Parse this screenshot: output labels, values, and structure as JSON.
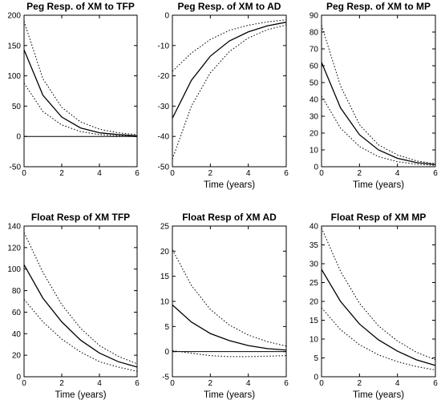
{
  "chart_data": [
    {
      "type": "line",
      "title": "Peg Resp. of XM to  TFP",
      "xlabel": "",
      "xlim": [
        0,
        6
      ],
      "ylim": [
        -50,
        200
      ],
      "xticks": [
        0,
        2,
        4,
        6
      ],
      "yticks": [
        -50,
        0,
        50,
        100,
        150,
        200
      ],
      "zero_line": true,
      "x": [
        0,
        1,
        2,
        3,
        4,
        5,
        6
      ],
      "series": [
        {
          "style": "solid",
          "values": [
            143,
            68,
            32,
            14,
            6,
            3,
            1
          ]
        },
        {
          "style": "dotted",
          "values": [
            190,
            95,
            48,
            24,
            12,
            6,
            3
          ]
        },
        {
          "style": "dotted",
          "values": [
            88,
            41,
            19,
            8,
            3,
            1,
            0
          ]
        }
      ]
    },
    {
      "type": "line",
      "title": "Peg Resp. of XM to  AD",
      "xlabel": "Time (years)",
      "xlim": [
        0,
        6
      ],
      "ylim": [
        -50,
        0
      ],
      "xticks": [
        0,
        2,
        4,
        6
      ],
      "yticks": [
        -50,
        -40,
        -30,
        -20,
        -10,
        0
      ],
      "zero_line": false,
      "x": [
        0,
        1,
        2,
        3,
        4,
        5,
        6
      ],
      "series": [
        {
          "style": "solid",
          "values": [
            -34,
            -21.5,
            -13.5,
            -8.5,
            -5.5,
            -3.5,
            -2.3
          ]
        },
        {
          "style": "dotted",
          "values": [
            -18.5,
            -12.5,
            -8,
            -5,
            -3.3,
            -2.2,
            -1.5
          ]
        },
        {
          "style": "dotted",
          "values": [
            -47.5,
            -30,
            -19,
            -12,
            -7.5,
            -4.8,
            -3.2
          ]
        }
      ]
    },
    {
      "type": "line",
      "title": "Peg Resp. of XM to  MP",
      "xlabel": "Time (years)",
      "xlim": [
        0,
        6
      ],
      "ylim": [
        0,
        90
      ],
      "xticks": [
        0,
        2,
        4,
        6
      ],
      "yticks": [
        0,
        10,
        20,
        30,
        40,
        50,
        60,
        70,
        80,
        90
      ],
      "zero_line": false,
      "x": [
        0,
        1,
        2,
        3,
        4,
        5,
        6
      ],
      "series": [
        {
          "style": "solid",
          "values": [
            62,
            35,
            19,
            10,
            5,
            2.5,
            1.3
          ]
        },
        {
          "style": "dotted",
          "values": [
            84,
            48,
            25,
            13,
            7,
            3.5,
            1.8
          ]
        },
        {
          "style": "dotted",
          "values": [
            42,
            23,
            12,
            6,
            3,
            1.5,
            0.8
          ]
        }
      ]
    },
    {
      "type": "line",
      "title": "Float Resp of XM TFP",
      "xlabel": "Time (years)",
      "xlim": [
        0,
        6
      ],
      "ylim": [
        0,
        140
      ],
      "xticks": [
        0,
        2,
        4,
        6
      ],
      "yticks": [
        0,
        20,
        40,
        60,
        80,
        100,
        120,
        140
      ],
      "zero_line": false,
      "x": [
        0,
        1,
        2,
        3,
        4,
        5,
        6
      ],
      "series": [
        {
          "style": "solid",
          "values": [
            104,
            73,
            51,
            34,
            22,
            14,
            9
          ]
        },
        {
          "style": "dotted",
          "values": [
            134,
            97,
            67,
            45,
            29,
            19,
            12
          ]
        },
        {
          "style": "dotted",
          "values": [
            72,
            51,
            35,
            23,
            14,
            9,
            5
          ]
        }
      ]
    },
    {
      "type": "line",
      "title": "Float Resp of XM AD",
      "xlabel": "Time (years)",
      "xlim": [
        0,
        6
      ],
      "ylim": [
        -5,
        25
      ],
      "xticks": [
        0,
        2,
        4,
        6
      ],
      "yticks": [
        -5,
        0,
        5,
        10,
        15,
        20,
        25
      ],
      "zero_line": true,
      "x": [
        0,
        1,
        2,
        3,
        4,
        5,
        6
      ],
      "series": [
        {
          "style": "solid",
          "values": [
            9.3,
            5.9,
            3.6,
            2.2,
            1.2,
            0.6,
            0.3
          ]
        },
        {
          "style": "dotted",
          "values": [
            20.3,
            13.2,
            8.4,
            5.3,
            3.3,
            2.0,
            1.1
          ]
        },
        {
          "style": "dotted",
          "values": [
            0.2,
            -0.3,
            -0.8,
            -1.0,
            -1.0,
            -0.9,
            -0.8
          ]
        }
      ]
    },
    {
      "type": "line",
      "title": "Float Resp of XM MP",
      "xlabel": "Time (years)",
      "xlim": [
        0,
        6
      ],
      "ylim": [
        0,
        40
      ],
      "xticks": [
        0,
        2,
        4,
        6
      ],
      "yticks": [
        0,
        5,
        10,
        15,
        20,
        25,
        30,
        35,
        40
      ],
      "zero_line": false,
      "x": [
        0,
        1,
        2,
        3,
        4,
        5,
        6
      ],
      "series": [
        {
          "style": "solid",
          "values": [
            28.5,
            20,
            14,
            9.8,
            6.8,
            4.5,
            3
          ]
        },
        {
          "style": "dotted",
          "values": [
            39.5,
            28,
            19.5,
            13.5,
            9.5,
            6.5,
            4.5
          ]
        },
        {
          "style": "dotted",
          "values": [
            18.3,
            12.5,
            8.5,
            5.8,
            4,
            2.7,
            1.8
          ]
        }
      ]
    }
  ]
}
